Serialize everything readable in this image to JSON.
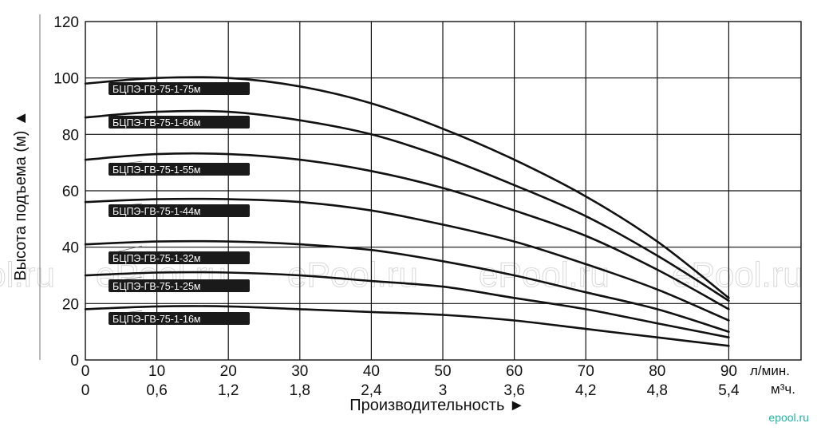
{
  "chart_data": {
    "type": "line",
    "ylabel": "Высота подъема (м) ▲",
    "xlabel": "Производительность ►",
    "ylim": [
      0,
      120
    ],
    "xlim": [
      0,
      90
    ],
    "yticks": [
      "0",
      "20",
      "40",
      "60",
      "80",
      "100",
      "120"
    ],
    "xticks_primary": [
      "0",
      "10",
      "20",
      "30",
      "40",
      "50",
      "60",
      "70",
      "80",
      "90"
    ],
    "xunit_primary": "л/мин.",
    "xticks_secondary": [
      "0",
      "0,6",
      "1,2",
      "1,8",
      "2,4",
      "3",
      "3,6",
      "4,2",
      "4,8",
      "5,4"
    ],
    "xunit_secondary": "м³ч.",
    "grid": true,
    "x": [
      0,
      10,
      20,
      30,
      40,
      50,
      60,
      70,
      80,
      90
    ],
    "series": [
      {
        "name": "БЦПЭ-ГВ-75-1-75м",
        "values": [
          98,
          100,
          100,
          97,
          91,
          82,
          71,
          58,
          42,
          22
        ]
      },
      {
        "name": "БЦПЭ-ГВ-75-1-66м",
        "values": [
          86,
          88,
          88,
          85,
          80,
          72,
          62,
          51,
          37,
          21
        ]
      },
      {
        "name": "БЦПЭ-ГВ-75-1-55м",
        "values": [
          71,
          73,
          73,
          71,
          67,
          61,
          53,
          44,
          32,
          18
        ]
      },
      {
        "name": "БЦПЭ-ГВ-75-1-44м",
        "values": [
          56,
          57,
          57,
          56,
          53,
          48,
          42,
          34,
          25,
          14
        ]
      },
      {
        "name": "БЦПЭ-ГВ-75-1-32м",
        "values": [
          41,
          42,
          42,
          41,
          39,
          35,
          30,
          24,
          18,
          10
        ]
      },
      {
        "name": "БЦПЭ-ГВ-75-1-25м",
        "values": [
          30,
          31,
          31,
          30,
          28,
          26,
          22,
          18,
          13,
          8
        ]
      },
      {
        "name": "БЦПЭ-ГВ-75-1-16м",
        "values": [
          18,
          19,
          19,
          18,
          17,
          16,
          14,
          11,
          8,
          5
        ]
      }
    ]
  },
  "watermark": {
    "text": "ePool.ru",
    "credit": "epool.ru",
    "credit_color": "#1fb5a5"
  },
  "colors": {
    "line": "#111111",
    "grid": "#111111",
    "label_bg": "#1a1a1a"
  }
}
